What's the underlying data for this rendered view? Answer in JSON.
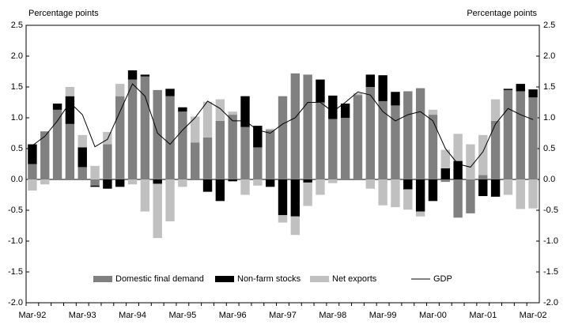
{
  "chart_data": {
    "type": "stacked-bar-line",
    "y_label": "Percentage points",
    "y2_label": "Percentage points",
    "categories": [
      "Mar-92",
      null,
      null,
      null,
      "Mar-93",
      null,
      null,
      null,
      "Mar-94",
      null,
      null,
      null,
      "Mar-95",
      null,
      null,
      null,
      "Mar-96",
      null,
      null,
      null,
      "Mar-97",
      null,
      null,
      null,
      "Mar-98",
      null,
      null,
      null,
      "Mar-99",
      null,
      null,
      null,
      "Mar-00",
      null,
      null,
      null,
      "Mar-01",
      null,
      null,
      null,
      "Mar-02"
    ],
    "series": [
      {
        "name": "Domestic final demand",
        "color": "#808080",
        "kind": "bar",
        "values": [
          0.25,
          0.78,
          1.13,
          0.9,
          0.2,
          -0.1,
          0.57,
          1.35,
          1.62,
          1.67,
          1.45,
          1.35,
          1.1,
          0.6,
          0.68,
          0.95,
          1.05,
          0.85,
          0.52,
          0.8,
          1.35,
          1.72,
          1.7,
          1.25,
          0.98,
          1.0,
          1.37,
          1.5,
          1.27,
          1.2,
          1.43,
          1.48,
          1.05,
          -0.04,
          -0.62,
          -0.55,
          0.07,
          0.95,
          1.45,
          1.43,
          1.33
        ]
      },
      {
        "name": "Non-farm stocks",
        "color": "#000000",
        "kind": "bar",
        "values": [
          0.32,
          0,
          0.1,
          0.45,
          0.32,
          -0.02,
          -0.15,
          -0.12,
          0.15,
          0.03,
          -0.07,
          0.12,
          0.07,
          0,
          -0.2,
          -0.35,
          -0.03,
          0.5,
          0.35,
          -0.12,
          -0.58,
          -0.6,
          -0.05,
          0.37,
          0.38,
          0.23,
          0,
          0.2,
          0.42,
          0.22,
          -0.16,
          -0.52,
          -0.35,
          0.18,
          0.3,
          0,
          -0.27,
          -0.28,
          0.02,
          0.12,
          0.13
        ]
      },
      {
        "name": "Net exports",
        "color": "#c0c0c0",
        "kind": "bar",
        "values": [
          -0.18,
          -0.08,
          0,
          0.15,
          0.2,
          0.22,
          0.2,
          0.2,
          -0.08,
          -0.52,
          -0.88,
          -0.68,
          -0.12,
          0.42,
          0.58,
          0.35,
          0.05,
          -0.25,
          -0.1,
          0.02,
          -0.12,
          -0.3,
          -0.38,
          -0.25,
          -0.06,
          0,
          0.03,
          -0.15,
          -0.42,
          -0.45,
          -0.33,
          -0.08,
          0.08,
          0.3,
          0.44,
          0.57,
          0.65,
          0.35,
          -0.25,
          -0.48,
          -0.47
        ]
      },
      {
        "name": "GDP",
        "color": "#000000",
        "kind": "line",
        "values": [
          0.55,
          0.7,
          0.95,
          1.25,
          1.05,
          0.53,
          0.65,
          1.1,
          1.55,
          1.35,
          0.75,
          0.57,
          0.8,
          1.0,
          1.27,
          1.15,
          0.95,
          0.95,
          0.8,
          0.75,
          0.9,
          1.0,
          1.25,
          1.25,
          1.1,
          1.25,
          1.42,
          1.37,
          1.1,
          0.95,
          1.05,
          1.1,
          0.95,
          0.5,
          0.25,
          0.2,
          0.45,
          0.9,
          1.15,
          1.05,
          0.97
        ]
      }
    ],
    "ylim": [
      -2,
      2.5
    ],
    "yticks": [
      {
        "value": -2,
        "label": "-2.0"
      },
      {
        "value": -1.5,
        "label": "-1.5"
      },
      {
        "value": -1,
        "label": "-1.0"
      },
      {
        "value": -0.5,
        "label": "-0.5"
      },
      {
        "value": 0,
        "label": "0.0"
      },
      {
        "value": 0.5,
        "label": "0.5"
      },
      {
        "value": 1,
        "label": "1.0"
      },
      {
        "value": 1.5,
        "label": "1.5"
      },
      {
        "value": 2,
        "label": "2.0"
      },
      {
        "value": 2.5,
        "label": "2.5"
      }
    ],
    "y2lim": [
      -2,
      2.5
    ],
    "y2ticks": [
      {
        "value": -2,
        "label": "-2.0"
      },
      {
        "value": -1.5,
        "label": "-1.5"
      },
      {
        "value": -1,
        "label": "-1.0"
      },
      {
        "value": -0.5,
        "label": "-0.5"
      },
      {
        "value": 0,
        "label": "0.0"
      },
      {
        "value": 0.5,
        "label": "0.5"
      },
      {
        "value": 1,
        "label": "1.0"
      },
      {
        "value": 1.5,
        "label": "1.5"
      },
      {
        "value": 2,
        "label": "2.0"
      },
      {
        "value": 2.5,
        "label": "2.5"
      }
    ],
    "grid": false,
    "legend": "bottom"
  }
}
